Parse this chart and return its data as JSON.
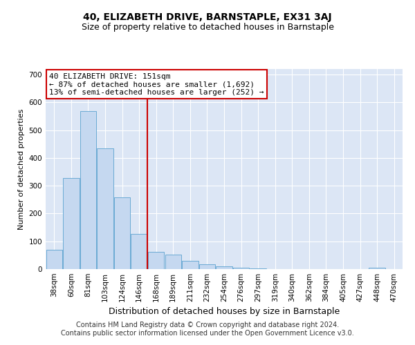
{
  "title": "40, ELIZABETH DRIVE, BARNSTAPLE, EX31 3AJ",
  "subtitle": "Size of property relative to detached houses in Barnstaple",
  "xlabel": "Distribution of detached houses by size in Barnstaple",
  "ylabel": "Number of detached properties",
  "categories": [
    "38sqm",
    "60sqm",
    "81sqm",
    "103sqm",
    "124sqm",
    "146sqm",
    "168sqm",
    "189sqm",
    "211sqm",
    "232sqm",
    "254sqm",
    "276sqm",
    "297sqm",
    "319sqm",
    "340sqm",
    "362sqm",
    "384sqm",
    "405sqm",
    "427sqm",
    "448sqm",
    "470sqm"
  ],
  "values": [
    70,
    328,
    568,
    435,
    257,
    127,
    63,
    52,
    30,
    17,
    11,
    5,
    2,
    1,
    1,
    0,
    0,
    0,
    0,
    5,
    0
  ],
  "bar_color": "#c5d8f0",
  "bar_edge_color": "#6aaad4",
  "vline_x": 5.5,
  "vline_color": "#cc0000",
  "annotation_line1": "40 ELIZABETH DRIVE: 151sqm",
  "annotation_line2": "← 87% of detached houses are smaller (1,692)",
  "annotation_line3": "13% of semi-detached houses are larger (252) →",
  "annotation_box_facecolor": "#ffffff",
  "annotation_box_edgecolor": "#cc0000",
  "ylim": [
    0,
    720
  ],
  "yticks": [
    0,
    100,
    200,
    300,
    400,
    500,
    600,
    700
  ],
  "fig_facecolor": "#ffffff",
  "axes_facecolor": "#dce6f5",
  "grid_color": "#ffffff",
  "title_fontsize": 10,
  "subtitle_fontsize": 9,
  "xlabel_fontsize": 9,
  "ylabel_fontsize": 8,
  "tick_fontsize": 7.5,
  "annotation_fontsize": 8,
  "footer_fontsize": 7
}
